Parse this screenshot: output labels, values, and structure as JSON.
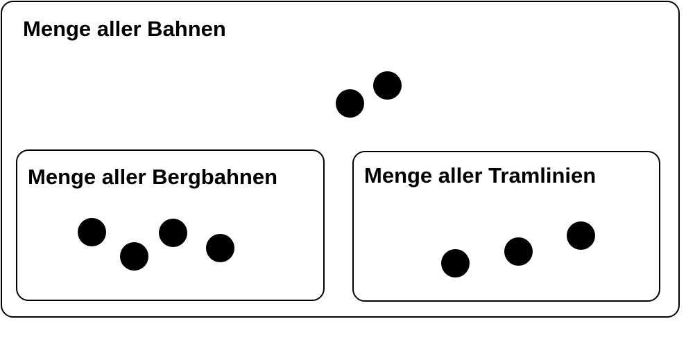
{
  "diagram": {
    "type": "set-diagram",
    "outer_set": {
      "label": "Menge aller Bahnen",
      "element_count_outside_subsets": 2
    },
    "subsets": [
      {
        "label": "Menge aller Bergbahnen",
        "element_count": 4
      },
      {
        "label": "Menge aller Tramlinien",
        "element_count": 3
      }
    ],
    "colors": {
      "border": "#000000",
      "element": "#000000",
      "background": "#ffffff"
    }
  }
}
